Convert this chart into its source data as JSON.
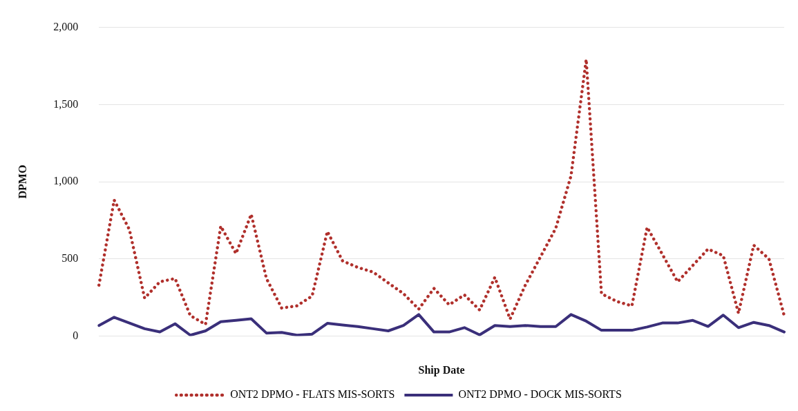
{
  "chart_data": {
    "type": "line",
    "xlabel": "Ship Date",
    "ylabel": "DPMO",
    "categories": [
      null,
      null,
      null,
      null,
      null,
      null,
      null,
      null,
      null,
      null,
      null,
      null,
      null,
      null,
      null,
      null,
      null,
      null,
      null,
      null,
      null,
      null,
      null,
      null,
      null,
      null,
      null,
      null,
      null,
      null,
      null,
      null,
      null,
      null,
      null,
      null,
      null,
      null,
      null,
      null,
      null,
      null,
      null,
      null,
      null,
      null
    ],
    "series": [
      {
        "name": "ONT2 DPMO - FLATS MIS-SORTS",
        "color": "#b0302c",
        "line_style": "dotted",
        "values": [
          330,
          881,
          690,
          246,
          352,
          373,
          133,
          76,
          712,
          535,
          789,
          373,
          182,
          196,
          260,
          678,
          487,
          445,
          415,
          345,
          275,
          175,
          309,
          203,
          267,
          169,
          381,
          111,
          330,
          514,
          699,
          1038,
          1792,
          275,
          225,
          196,
          705,
          530,
          352,
          458,
          564,
          521,
          148,
          589,
          500,
          133
        ]
      },
      {
        "name": "ONT2 DPMO - DOCK MIS-SORTS",
        "color": "#3a2f7a",
        "line_style": "solid",
        "values": [
          69,
          122,
          85,
          48,
          27,
          80,
          6,
          34,
          93,
          102,
          112,
          20,
          24,
          6,
          13,
          83,
          72,
          62,
          48,
          34,
          69,
          140,
          27,
          27,
          55,
          8,
          69,
          62,
          69,
          62,
          62,
          140,
          97,
          38,
          38,
          38,
          59,
          85,
          85,
          102,
          63,
          136,
          55,
          89,
          69,
          27
        ]
      }
    ],
    "ylim": [
      0,
      2000
    ],
    "yticks": [
      0,
      500,
      {
        "value": 1000,
        "label": "1,000"
      },
      {
        "value": 1500,
        "label": "1,500"
      },
      {
        "value": 2000,
        "label": "2,000"
      }
    ],
    "grid": "y",
    "legend": "bottom",
    "marker": "none"
  }
}
